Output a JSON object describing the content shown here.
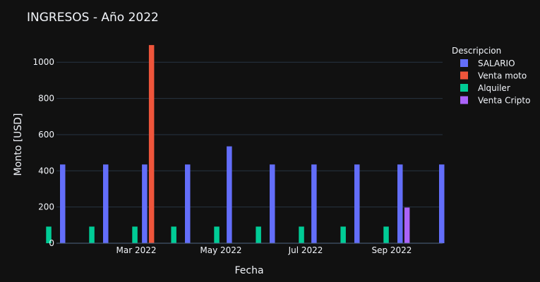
{
  "chart_data": {
    "type": "bar",
    "title": "INGRESOS - Año 2022",
    "xlabel": "Fecha",
    "ylabel": "Monto [USD]",
    "ylim": [
      0,
      1110
    ],
    "yticks": [
      0,
      200,
      400,
      600,
      800,
      1000
    ],
    "xticks": [
      "Mar 2022",
      "May 2022",
      "Jul 2022",
      "Sep 2022"
    ],
    "legend": {
      "title": "Descripcion",
      "position": "right"
    },
    "series": [
      {
        "name": "SALARIO",
        "color": "#636efa",
        "points": [
          {
            "date": "2022-01-07",
            "value": 435
          },
          {
            "date": "2022-02-07",
            "value": 435
          },
          {
            "date": "2022-03-07",
            "value": 435
          },
          {
            "date": "2022-04-07",
            "value": 435
          },
          {
            "date": "2022-05-07",
            "value": 535
          },
          {
            "date": "2022-06-07",
            "value": 435
          },
          {
            "date": "2022-07-07",
            "value": 435
          },
          {
            "date": "2022-08-07",
            "value": 435
          },
          {
            "date": "2022-09-07",
            "value": 435
          },
          {
            "date": "2022-10-07",
            "value": 435
          }
        ]
      },
      {
        "name": "Venta moto",
        "color": "#ef553b",
        "points": [
          {
            "date": "2022-03-12",
            "value": 1095
          }
        ]
      },
      {
        "name": "Alquiler",
        "color": "#00cc96",
        "points": [
          {
            "date": "2021-12-28",
            "value": 92
          },
          {
            "date": "2022-01-28",
            "value": 92
          },
          {
            "date": "2022-02-28",
            "value": 92
          },
          {
            "date": "2022-03-28",
            "value": 92
          },
          {
            "date": "2022-04-28",
            "value": 92
          },
          {
            "date": "2022-05-28",
            "value": 92
          },
          {
            "date": "2022-06-28",
            "value": 92
          },
          {
            "date": "2022-07-28",
            "value": 92
          },
          {
            "date": "2022-08-28",
            "value": 92
          }
        ]
      },
      {
        "name": "Venta Cripto",
        "color": "#ab63fa",
        "points": [
          {
            "date": "2022-09-12",
            "value": 197
          }
        ]
      }
    ]
  }
}
